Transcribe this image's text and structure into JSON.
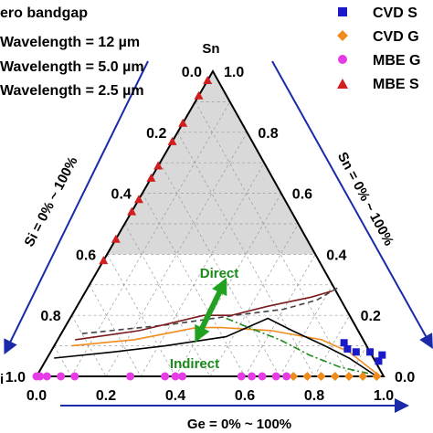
{
  "chart_data": {
    "type": "ternary",
    "vertices": {
      "top": "Sn",
      "bottom_left": "Si",
      "bottom_right": "Ge"
    },
    "vertex_labels": {
      "top": "Sn",
      "bottom_left": "Si"
    },
    "ticks": [
      "0.0",
      "0.2",
      "0.4",
      "0.6",
      "0.8",
      "1.0"
    ],
    "tick_values": [
      0,
      0.2,
      0.4,
      0.6,
      0.8,
      1.0
    ],
    "axis_titles": {
      "bottom": "Ge = 0% ~ 100%",
      "left": "Si = 0% ~ 100%",
      "right": "Sn = 0% ~ 100%"
    },
    "grid": true,
    "shaded_region": {
      "description": "Sn fraction above 0.4",
      "sn_min": 0.4,
      "color": "#d9d9d9"
    },
    "legend_left": [
      {
        "label": "ero bandgap",
        "style": "dashed",
        "color": "#000000"
      },
      {
        "label": "Wavelength = 12 µm",
        "style": "solid",
        "color": "#7a1a1a"
      },
      {
        "label": "Wavelength = 5.0 µm",
        "style": "solid",
        "color": "#f08c1e"
      },
      {
        "label": "Wavelength = 2.5 µm",
        "style": "solid",
        "color": "#000000"
      }
    ],
    "legend_right": [
      {
        "label": "CVD S",
        "marker": "square",
        "color": "#1a1ac8"
      },
      {
        "label": "CVD G",
        "marker": "diamond",
        "color": "#f08c1e"
      },
      {
        "label": "MBE G",
        "marker": "circle",
        "color": "#e63ce6"
      },
      {
        "label": "MBE S",
        "marker": "triangle",
        "color": "#d21e1e"
      }
    ],
    "annotations": {
      "direct": "Direct",
      "indirect": "Indirect"
    },
    "curves": [
      {
        "name": "zero bandgap",
        "color": "#000000",
        "dash": true,
        "points": [
          [
            0.15,
            0.07
          ],
          [
            0.2,
            0.33
          ],
          [
            0.25,
            0.49
          ],
          [
            0.28,
            0.6
          ],
          [
            0.3,
            0.68
          ],
          [
            0.3,
            0.68
          ]
        ]
      },
      {
        "name": "12 um",
        "color": "#7a1a1a",
        "dash": false,
        "points": [
          [
            0.13,
            0.07
          ],
          [
            0.18,
            0.18
          ],
          [
            0.23,
            0.39
          ],
          [
            0.26,
            0.45
          ],
          [
            0.28,
            0.53
          ],
          [
            0.3,
            0.64
          ]
        ]
      }
    ],
    "series": [
      {
        "name": "CVD S",
        "marker": "square",
        "color": "#1a1ac8",
        "points": [
          [
            0.11,
            0.83
          ],
          [
            0.09,
            0.85
          ],
          [
            0.08,
            0.88
          ],
          [
            0.08,
            0.92
          ],
          [
            0.07,
            0.96
          ],
          [
            0.05,
            0.96
          ]
        ]
      },
      {
        "name": "CVD G",
        "marker": "diamond",
        "color": "#f08c1e",
        "points": [
          [
            0.0,
            0.74
          ],
          [
            0.0,
            0.78
          ],
          [
            0.0,
            0.82
          ],
          [
            0.0,
            0.86
          ],
          [
            0.0,
            0.9
          ],
          [
            0.0,
            0.94
          ],
          [
            0.0,
            0.98
          ]
        ]
      },
      {
        "name": "MBE G",
        "marker": "circle",
        "color": "#e63ce6",
        "points": [
          [
            0.0,
            0.0
          ],
          [
            0.0,
            0.01
          ],
          [
            0.0,
            0.03
          ],
          [
            0.0,
            0.07
          ],
          [
            0.0,
            0.11
          ],
          [
            0.0,
            0.27
          ],
          [
            0.0,
            0.37
          ],
          [
            0.0,
            0.4
          ],
          [
            0.0,
            0.42
          ],
          [
            0.0,
            0.59
          ],
          [
            0.0,
            0.62
          ],
          [
            0.0,
            0.65
          ],
          [
            0.0,
            0.69
          ],
          [
            0.0,
            0.72
          ]
        ]
      },
      {
        "name": "MBE S",
        "marker": "triangle",
        "color": "#d21e1e",
        "points": [
          [
            0.38,
            0.0
          ],
          [
            0.45,
            0.0
          ],
          [
            0.54,
            0.0
          ],
          [
            0.58,
            0.0
          ],
          [
            0.65,
            0.0
          ],
          [
            0.69,
            0.0
          ],
          [
            0.77,
            0.0
          ],
          [
            0.83,
            0.0
          ],
          [
            0.92,
            0.0
          ],
          [
            0.97,
            0.0
          ]
        ]
      }
    ]
  }
}
